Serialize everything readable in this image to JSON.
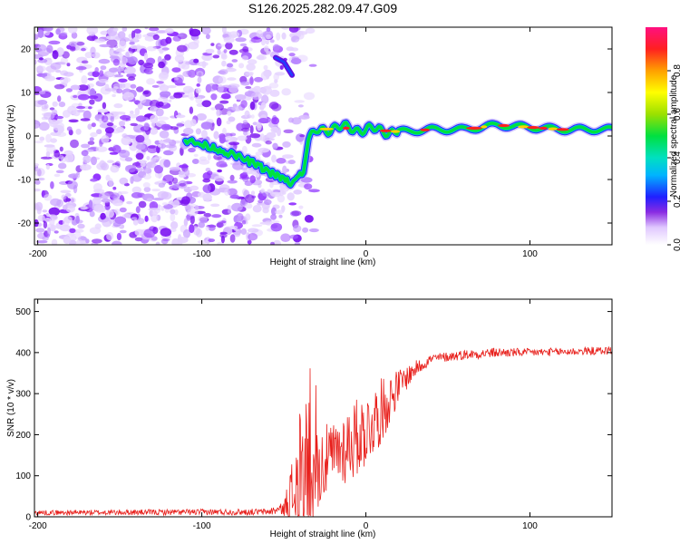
{
  "title": "S126.2025.282.09.47.G09",
  "chart_data": [
    {
      "type": "heatmap",
      "name": "spectrogram",
      "xlabel": "Height of straight line (km)",
      "ylabel": "Frequency (Hz)",
      "xlim": [
        -202,
        150
      ],
      "ylim": [
        -25,
        25
      ],
      "xticks": [
        -200,
        -100,
        0,
        100
      ],
      "yticks": [
        -20,
        -10,
        0,
        10,
        20
      ],
      "colorbar": {
        "label": "Normalized spectral amplitude",
        "range": [
          0.0,
          1.0
        ],
        "ticks": [
          0.0,
          0.2,
          0.4,
          0.6,
          0.8
        ],
        "tick_labels": [
          "0.0",
          "0.2",
          "0.4",
          "0.6",
          "0.8"
        ]
      },
      "ridge": {
        "description_points_height_km": [
          -110,
          -90,
          -70,
          -55,
          -45,
          -38,
          -35,
          -30,
          -20,
          0,
          20,
          40,
          60,
          80,
          100,
          120,
          150
        ],
        "frequency_hz": [
          -1,
          -3,
          -6,
          -9,
          -11,
          -8,
          -1,
          1,
          2,
          1.5,
          1,
          1.5,
          1.5,
          2.5,
          2,
          1.5,
          1.5
        ],
        "upper_ridge_height_km": [
          -55,
          -50,
          -45
        ],
        "upper_ridge_frequency_hz": [
          18,
          17,
          14
        ]
      },
      "noise_region_height_km": [
        -202,
        -40
      ]
    },
    {
      "type": "line",
      "name": "snr",
      "xlabel": "Height of straight line (km)",
      "ylabel": "SNR (10 * v/v)",
      "xlim": [
        -202,
        150
      ],
      "ylim": [
        0,
        530
      ],
      "xticks": [
        -200,
        -100,
        0,
        100
      ],
      "yticks": [
        0,
        100,
        200,
        300,
        400,
        500
      ],
      "series": [
        {
          "name": "SNR",
          "color": "#e8201c",
          "envelope_x": [
            -202,
            -60,
            -50,
            -40,
            -35,
            -30,
            -20,
            -10,
            0,
            10,
            20,
            30,
            40,
            60,
            80,
            100,
            120,
            150
          ],
          "envelope_mean": [
            10,
            12,
            20,
            80,
            150,
            120,
            150,
            180,
            210,
            260,
            320,
            360,
            385,
            395,
            400,
            400,
            402,
            405
          ],
          "envelope_amplitude": [
            6,
            8,
            15,
            180,
            260,
            100,
            80,
            100,
            90,
            80,
            40,
            20,
            12,
            12,
            12,
            10,
            10,
            10
          ]
        }
      ]
    }
  ]
}
